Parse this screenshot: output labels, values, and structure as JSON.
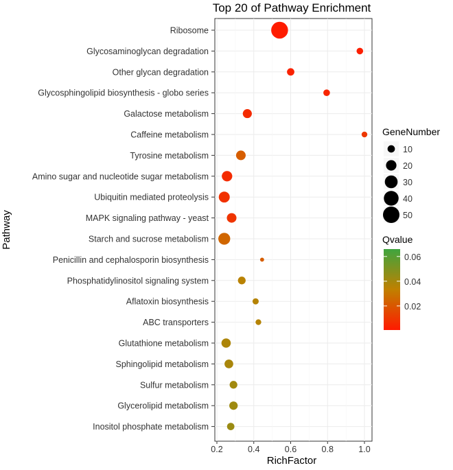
{
  "chart_data": {
    "type": "scatter",
    "title": "Top 20 of Pathway Enrichment",
    "xlabel": "RichFactor",
    "ylabel": "Pathway",
    "xlim": [
      0.2,
      1.0
    ],
    "xticks": [
      "0.2",
      "0.4",
      "0.6",
      "0.8",
      "1.0"
    ],
    "grid": true,
    "points": [
      {
        "pathway": "Ribosome",
        "rich_factor": 0.54,
        "gene_number": 52,
        "qvalue": 0.001
      },
      {
        "pathway": "Glycosaminoglycan degradation",
        "rich_factor": 0.975,
        "gene_number": 8,
        "qvalue": 0.002
      },
      {
        "pathway": "Other glycan degradation",
        "rich_factor": 0.6,
        "gene_number": 10,
        "qvalue": 0.003
      },
      {
        "pathway": "Glycosphingolipid biosynthesis - globo series",
        "rich_factor": 0.795,
        "gene_number": 8,
        "qvalue": 0.004
      },
      {
        "pathway": "Galactose metabolism",
        "rich_factor": 0.365,
        "gene_number": 15,
        "qvalue": 0.006
      },
      {
        "pathway": "Caffeine metabolism",
        "rich_factor": 1.0,
        "gene_number": 6,
        "qvalue": 0.01
      },
      {
        "pathway": "Tyrosine metabolism",
        "rich_factor": 0.33,
        "gene_number": 17,
        "qvalue": 0.022
      },
      {
        "pathway": "Amino sugar and nucleotide sugar metabolism",
        "rich_factor": 0.255,
        "gene_number": 20,
        "qvalue": 0.006
      },
      {
        "pathway": "Ubiquitin mediated proteolysis",
        "rich_factor": 0.24,
        "gene_number": 22,
        "qvalue": 0.008
      },
      {
        "pathway": "MAPK signaling pathway - yeast",
        "rich_factor": 0.28,
        "gene_number": 17,
        "qvalue": 0.009
      },
      {
        "pathway": "Starch and sucrose metabolism",
        "rich_factor": 0.24,
        "gene_number": 26,
        "qvalue": 0.025
      },
      {
        "pathway": "Penicillin and cephalosporin biosynthesis",
        "rich_factor": 0.445,
        "gene_number": 3,
        "qvalue": 0.022
      },
      {
        "pathway": "Phosphatidylinositol signaling system",
        "rich_factor": 0.335,
        "gene_number": 11,
        "qvalue": 0.035
      },
      {
        "pathway": "Aflatoxin biosynthesis",
        "rich_factor": 0.41,
        "gene_number": 7,
        "qvalue": 0.036
      },
      {
        "pathway": "ABC transporters",
        "rich_factor": 0.425,
        "gene_number": 6,
        "qvalue": 0.036
      },
      {
        "pathway": "Glutathione metabolism",
        "rich_factor": 0.25,
        "gene_number": 16,
        "qvalue": 0.038
      },
      {
        "pathway": "Sphingolipid metabolism",
        "rich_factor": 0.265,
        "gene_number": 14,
        "qvalue": 0.039
      },
      {
        "pathway": "Sulfur metabolism",
        "rich_factor": 0.29,
        "gene_number": 11,
        "qvalue": 0.041
      },
      {
        "pathway": "Glycerolipid metabolism",
        "rich_factor": 0.29,
        "gene_number": 13,
        "qvalue": 0.042
      },
      {
        "pathway": "Inositol phosphate metabolism",
        "rich_factor": 0.275,
        "gene_number": 10,
        "qvalue": 0.043
      }
    ],
    "size_legend": {
      "title": "GeneNumber",
      "labels": [
        "10",
        "20",
        "30",
        "40",
        "50"
      ],
      "values": [
        10,
        20,
        30,
        40,
        50
      ]
    },
    "color_legend": {
      "title": "Qvalue",
      "labels": [
        "0.06",
        "0.04",
        "0.02"
      ],
      "values": [
        0.06,
        0.04,
        0.02
      ],
      "range": [
        0.0005,
        0.066
      ],
      "low_color": "#ff1a00",
      "mid_color": "#c08000",
      "high_color": "#3fa53f"
    }
  }
}
